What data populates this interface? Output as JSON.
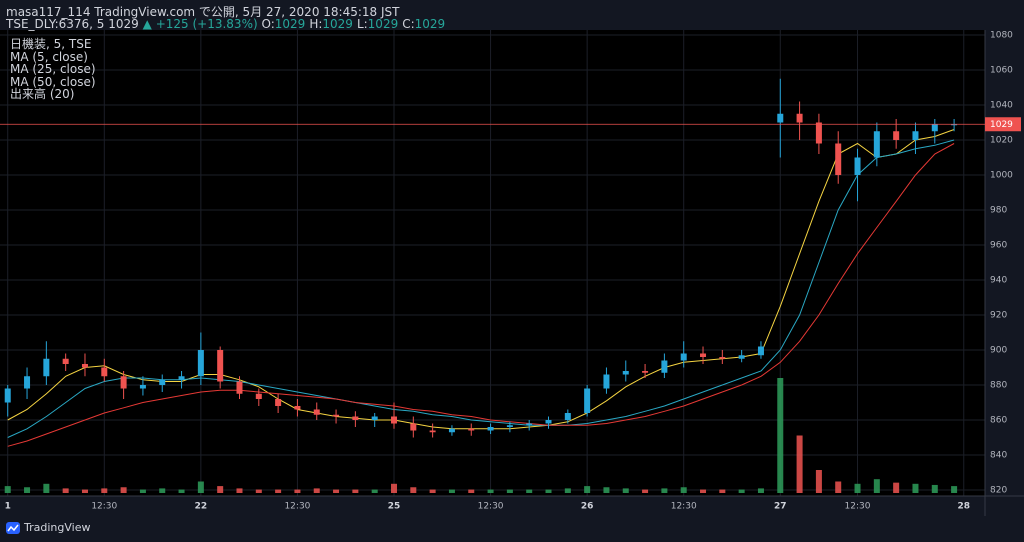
{
  "chart_data": {
    "type": "candlestick",
    "header": {
      "publisher": "masa117_114 TradingView.com で公開, 5月 27, 2020 18:45:18 JST",
      "symbol": "TSE_DLY:6376, 5",
      "last": 1029,
      "change": "▲ +125 (+13.83%)",
      "ohlc": [
        {
          "label": "O:",
          "value": 1029
        },
        {
          "label": "H:",
          "value": 1029
        },
        {
          "label": "L:",
          "value": 1029
        },
        {
          "label": "C:",
          "value": 1029
        }
      ]
    },
    "legend": [
      "日機装, 5, TSE",
      "MA (5, close)",
      "MA (25, close)",
      "MA (50, close)",
      "出来高 (20)"
    ],
    "brand": "TradingView",
    "up_color": "#26a6da",
    "down_color": "#ef5350",
    "open": [
      870,
      878,
      885,
      895,
      892,
      890,
      885,
      878,
      880,
      883,
      885,
      900,
      882,
      875,
      872,
      868,
      866,
      863,
      862,
      860,
      862,
      858,
      854,
      853,
      855,
      854,
      856,
      857,
      858,
      860,
      864,
      878,
      886,
      888,
      887,
      894,
      898,
      896,
      895,
      897,
      1030,
      1035,
      1030,
      1018,
      1000,
      1010,
      1025,
      1020,
      1025,
      1029
    ],
    "high": [
      880,
      890,
      905,
      898,
      898,
      895,
      888,
      885,
      886,
      888,
      910,
      902,
      885,
      878,
      875,
      872,
      870,
      866,
      865,
      864,
      870,
      862,
      858,
      857,
      858,
      858,
      859,
      860,
      862,
      866,
      880,
      890,
      894,
      892,
      898,
      905,
      902,
      900,
      900,
      905,
      1055,
      1042,
      1035,
      1025,
      1015,
      1030,
      1032,
      1030,
      1032,
      1032
    ],
    "low": [
      862,
      872,
      880,
      888,
      885,
      882,
      872,
      874,
      876,
      878,
      880,
      878,
      872,
      868,
      864,
      862,
      860,
      858,
      856,
      856,
      855,
      850,
      850,
      851,
      851,
      852,
      853,
      854,
      855,
      858,
      862,
      875,
      882,
      884,
      884,
      890,
      892,
      892,
      893,
      895,
      1010,
      1020,
      1012,
      995,
      985,
      1005,
      1015,
      1012,
      1018,
      1025
    ],
    "close": [
      878,
      885,
      895,
      892,
      890,
      885,
      878,
      880,
      883,
      885,
      900,
      882,
      875,
      872,
      868,
      866,
      863,
      862,
      860,
      862,
      858,
      854,
      853,
      855,
      854,
      856,
      857,
      858,
      860,
      864,
      878,
      886,
      888,
      887,
      894,
      898,
      896,
      895,
      897,
      902,
      1035,
      1030,
      1018,
      1000,
      1010,
      1025,
      1020,
      1025,
      1029,
      1029
    ],
    "volume": [
      6,
      5,
      8,
      4,
      3,
      4,
      5,
      3,
      4,
      3,
      10,
      6,
      4,
      3,
      3,
      3,
      4,
      3,
      3,
      3,
      8,
      5,
      3,
      3,
      3,
      3,
      3,
      3,
      3,
      4,
      6,
      5,
      4,
      3,
      4,
      5,
      3,
      3,
      3,
      4,
      100,
      50,
      20,
      10,
      8,
      12,
      9,
      8,
      7,
      6
    ],
    "vlim": [
      0,
      100
    ],
    "series": [
      {
        "name": "MA (5, close)",
        "color": "#f5d442",
        "values": [
          860,
          866,
          875,
          885,
          890,
          891,
          886,
          883,
          882,
          882,
          886,
          886,
          883,
          879,
          872,
          866,
          864,
          862,
          861,
          860,
          860,
          858,
          856,
          855,
          855,
          855,
          855,
          856,
          857,
          859,
          864,
          871,
          879,
          885,
          890,
          893,
          894,
          895,
          896,
          898,
          925,
          955,
          985,
          1012,
          1018,
          1010,
          1012,
          1020,
          1022,
          1026
        ]
      },
      {
        "name": "MA (25, close)",
        "color": "#2aa8c4",
        "values": [
          850,
          855,
          862,
          870,
          878,
          882,
          884,
          884,
          883,
          883,
          884,
          883,
          882,
          880,
          878,
          876,
          874,
          872,
          870,
          868,
          866,
          865,
          863,
          862,
          860,
          859,
          858,
          857,
          857,
          857,
          858,
          860,
          862,
          865,
          868,
          872,
          876,
          880,
          884,
          888,
          900,
          920,
          950,
          980,
          1000,
          1010,
          1012,
          1015,
          1017,
          1020
        ]
      },
      {
        "name": "MA (50, close)",
        "color": "#e53935",
        "values": [
          845,
          848,
          852,
          856,
          860,
          864,
          867,
          870,
          872,
          874,
          876,
          877,
          877,
          876,
          875,
          874,
          873,
          872,
          870,
          869,
          868,
          866,
          865,
          863,
          862,
          860,
          859,
          858,
          857,
          857,
          857,
          858,
          860,
          862,
          865,
          868,
          872,
          876,
          880,
          885,
          893,
          905,
          920,
          938,
          955,
          970,
          985,
          1000,
          1012,
          1018
        ]
      }
    ],
    "xlim": [
      -0.4,
      50.6
    ],
    "xticks": [
      {
        "value": 0,
        "label": "1"
      },
      {
        "value": 5,
        "label": "12:30"
      },
      {
        "value": 10,
        "label": "22"
      },
      {
        "value": 15,
        "label": "12:30"
      },
      {
        "value": 20,
        "label": "25"
      },
      {
        "value": 25,
        "label": "12:30"
      },
      {
        "value": 30,
        "label": "26"
      },
      {
        "value": 35,
        "label": "12:30"
      },
      {
        "value": 40,
        "label": "27"
      },
      {
        "value": 44,
        "label": "12:30"
      },
      {
        "value": 49.5,
        "label": "28"
      }
    ],
    "ylim": [
      820,
      1080
    ],
    "yticks": [
      820,
      840,
      860,
      880,
      900,
      920,
      940,
      960,
      980,
      1000,
      1020,
      1040,
      1060,
      1080
    ],
    "price_label": 1029,
    "grid": true
  }
}
